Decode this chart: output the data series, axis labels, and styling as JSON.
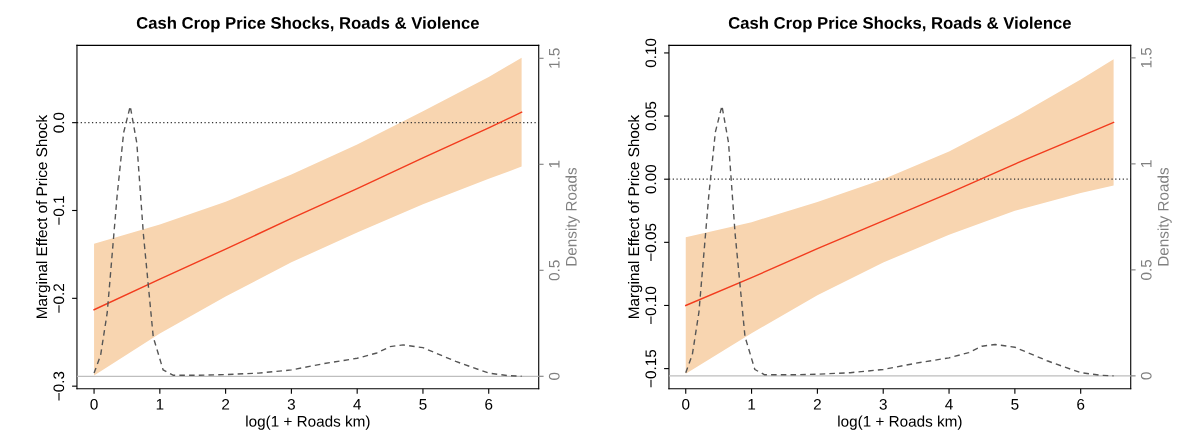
{
  "chart_data": [
    {
      "type": "line",
      "title": "Cash Crop Price Shocks, Roads & Violence",
      "xlabel": "log(1 + Roads km)",
      "ylabel": "Marginal Effect of Price Shock",
      "y2label": "Density Roads",
      "xlim": [
        -0.26,
        6.76
      ],
      "xticks": [
        0,
        1,
        2,
        3,
        4,
        5,
        6
      ],
      "ylim": [
        -0.303,
        0.088
      ],
      "yticks": [
        {
          "value": -0.3,
          "label": "−0.3"
        },
        {
          "value": -0.2,
          "label": "−0.2"
        },
        {
          "value": -0.1,
          "label": "−0.1"
        },
        {
          "value": 0,
          "label": "0.0"
        }
      ],
      "y2lim": [
        -0.059,
        1.561
      ],
      "y2ticks": [
        0,
        0.5,
        1,
        1.5
      ],
      "grid": false,
      "series": [
        {
          "color": "#f23c1e",
          "x": [
            0,
            1,
            2,
            3,
            4,
            5,
            6,
            6.5
          ],
          "values": [
            -0.213,
            -0.178,
            -0.144,
            -0.109,
            -0.075,
            -0.04,
            -0.006,
            0.012
          ],
          "upper": [
            -0.138,
            -0.116,
            -0.09,
            -0.059,
            -0.025,
            0.013,
            0.052,
            0.074
          ],
          "lower": [
            -0.288,
            -0.24,
            -0.198,
            -0.159,
            -0.125,
            -0.093,
            -0.064,
            -0.05
          ]
        },
        {
          "type": "line",
          "axis": "y2",
          "color": "#555555",
          "line_style": "dashed",
          "x": [
            0,
            0.1,
            0.2,
            0.35,
            0.45,
            0.55,
            0.65,
            0.75,
            0.9,
            1.05,
            1.2,
            1.6,
            2,
            2.5,
            3,
            3.5,
            4,
            4.3,
            4.5,
            4.7,
            5,
            5.5,
            6,
            6.3,
            6.5
          ],
          "values": [
            0.015,
            0.1,
            0.3,
            0.85,
            1.15,
            1.274,
            1.1,
            0.67,
            0.185,
            0.03,
            0.005,
            0.005,
            0.008,
            0.015,
            0.03,
            0.06,
            0.085,
            0.11,
            0.14,
            0.148,
            0.135,
            0.07,
            0.015,
            0.003,
            0.0
          ]
        }
      ],
      "ref_lines": [
        {
          "axis": "y",
          "value": 0,
          "color": "#333333",
          "line_style": "dotted"
        },
        {
          "axis": "y2",
          "value": 0,
          "color": "#bebebe",
          "line_style": "solid"
        }
      ]
    },
    {
      "type": "line",
      "title": "Cash Crop Price Shocks, Roads & Violence",
      "xlabel": "log(1 + Roads km)",
      "ylabel": "Marginal Effect of Price Shock",
      "y2label": "Density Roads",
      "xlim": [
        -0.255,
        6.76
      ],
      "xticks": [
        0,
        1,
        2,
        3,
        4,
        5,
        6
      ],
      "ylim": [
        -0.166,
        0.106
      ],
      "yticks": [
        {
          "value": -0.15,
          "label": "−0.15"
        },
        {
          "value": -0.1,
          "label": "−0.10"
        },
        {
          "value": -0.05,
          "label": "−0.05"
        },
        {
          "value": 0,
          "label": "0.00"
        },
        {
          "value": 0.05,
          "label": "0.05"
        },
        {
          "value": 0.1,
          "label": "0.10"
        }
      ],
      "y2lim": [
        -0.061,
        1.559
      ],
      "y2ticks": [
        0,
        0.5,
        1,
        1.5
      ],
      "grid": false,
      "series": [
        {
          "color": "#f23c1e",
          "x": [
            0,
            1,
            2,
            3,
            4,
            5,
            6,
            6.5
          ],
          "values": [
            -0.1,
            -0.078,
            -0.055,
            -0.033,
            -0.011,
            0.012,
            0.034,
            0.045
          ],
          "upper": [
            -0.046,
            -0.034,
            -0.018,
            0.0,
            0.022,
            0.049,
            0.079,
            0.095
          ],
          "lower": [
            -0.154,
            -0.122,
            -0.092,
            -0.066,
            -0.044,
            -0.025,
            -0.011,
            -0.005
          ]
        },
        {
          "type": "line",
          "axis": "y2",
          "color": "#555555",
          "line_style": "dashed",
          "x": [
            0,
            0.1,
            0.2,
            0.35,
            0.45,
            0.55,
            0.65,
            0.75,
            0.9,
            1.05,
            1.2,
            1.6,
            2,
            2.5,
            3,
            3.5,
            4,
            4.3,
            4.5,
            4.7,
            5,
            5.5,
            6,
            6.3,
            6.5
          ],
          "values": [
            0.015,
            0.1,
            0.3,
            0.85,
            1.15,
            1.274,
            1.1,
            0.67,
            0.185,
            0.03,
            0.005,
            0.005,
            0.008,
            0.015,
            0.03,
            0.06,
            0.085,
            0.11,
            0.14,
            0.148,
            0.135,
            0.07,
            0.015,
            0.003,
            0.0
          ]
        }
      ],
      "ref_lines": [
        {
          "axis": "y",
          "value": 0,
          "color": "#333333",
          "line_style": "dotted"
        },
        {
          "axis": "y2",
          "value": 0,
          "color": "#bebebe",
          "line_style": "solid"
        }
      ]
    }
  ]
}
